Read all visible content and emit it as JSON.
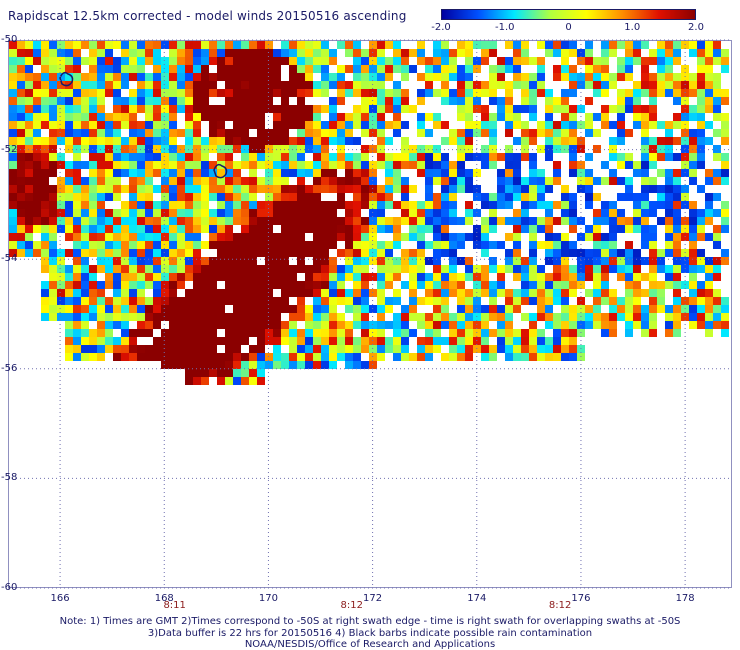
{
  "title": "Rapidscat 12.5km corrected - model winds 20150516 ascending",
  "colorbar": {
    "labels": [
      "-2.0",
      "-1.0",
      "0",
      "1.0",
      "2.0"
    ],
    "range": [
      -2.0,
      2.0
    ],
    "stops": [
      "#0000a0",
      "#0050ff",
      "#00e8ff",
      "#b0ff40",
      "#ffff00",
      "#ff8c00",
      "#e01000",
      "#8b0000"
    ]
  },
  "map": {
    "lat_ticks": [
      "-50",
      "-52",
      "-54",
      "-56",
      "-58",
      "-60"
    ],
    "lon_ticks": [
      "166",
      "168",
      "170",
      "172",
      "174",
      "176",
      "178"
    ],
    "lat_range": [
      -60,
      -50
    ],
    "lon_range": [
      165.0,
      178.9
    ],
    "time_labels": [
      {
        "text": "8:11",
        "lon": 168.2
      },
      {
        "text": "8:12",
        "lon": 171.6
      },
      {
        "text": "8:12",
        "lon": 175.6
      }
    ],
    "grid": true,
    "missing_color": "#ffffff"
  },
  "footer": {
    "line1": "Note: 1) Times are GMT 2)Times correspond to -50S at right swath edge - time is right swath for overlapping swaths at -50S",
    "line2": "3)Data buffer is 22 hrs for 20150516 4) Black barbs indicate possible rain contamination",
    "line3": "NOAA/NESDIS/Office of Research and Applications"
  }
}
